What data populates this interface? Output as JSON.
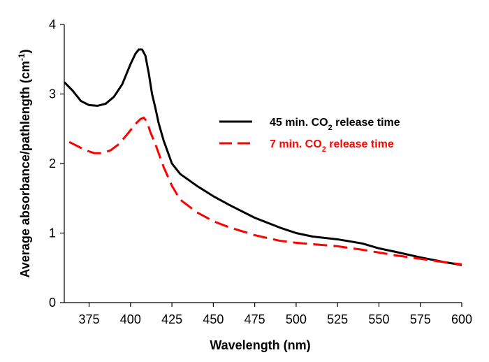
{
  "chart_data": {
    "type": "line",
    "title": "",
    "xlabel": "Wavelength (nm)",
    "ylabel": {
      "text": "Average absorbance/pathlength (cm",
      "sup": "-1",
      "close": ")"
    },
    "xlim": [
      360,
      600
    ],
    "ylim": [
      0,
      4
    ],
    "x_ticks": [
      375,
      400,
      425,
      450,
      475,
      500,
      525,
      550,
      575,
      600
    ],
    "y_ticks": [
      0,
      1,
      2,
      3,
      4
    ],
    "grid": false,
    "legend_position": "center-right",
    "series": [
      {
        "name": "45 min. CO2 release time",
        "label": {
          "pre": "45 min. CO",
          "sub": "2",
          "post": " release time"
        },
        "color": "#000000",
        "style": "solid",
        "x": [
          360,
          365,
          370,
          375,
          380,
          385,
          390,
          395,
          400,
          403,
          405,
          407,
          409,
          411,
          413,
          415,
          417,
          420,
          425,
          430,
          440,
          450,
          460,
          475,
          490,
          500,
          510,
          525,
          540,
          550,
          560,
          575,
          590,
          600
        ],
        "y": [
          3.17,
          3.05,
          2.9,
          2.84,
          2.83,
          2.86,
          2.96,
          3.14,
          3.43,
          3.58,
          3.64,
          3.64,
          3.55,
          3.3,
          3.0,
          2.8,
          2.58,
          2.33,
          2.0,
          1.85,
          1.68,
          1.53,
          1.4,
          1.22,
          1.08,
          1.0,
          0.95,
          0.91,
          0.85,
          0.78,
          0.73,
          0.65,
          0.58,
          0.54
        ]
      },
      {
        "name": "7 min. CO2 release time",
        "label": {
          "pre": "7 min. CO",
          "sub": "2",
          "post": " release time"
        },
        "color": "#ff0000",
        "style": "dashed",
        "x": [
          363,
          368,
          373,
          378,
          383,
          388,
          393,
          398,
          403,
          406,
          408,
          410,
          412,
          415,
          418,
          420,
          425,
          430,
          440,
          450,
          460,
          475,
          490,
          500,
          510,
          525,
          540,
          550,
          560,
          575,
          590,
          600
        ],
        "y": [
          2.31,
          2.25,
          2.19,
          2.15,
          2.15,
          2.19,
          2.28,
          2.42,
          2.57,
          2.64,
          2.66,
          2.6,
          2.45,
          2.28,
          2.08,
          1.95,
          1.68,
          1.48,
          1.3,
          1.17,
          1.08,
          0.97,
          0.89,
          0.86,
          0.84,
          0.81,
          0.76,
          0.72,
          0.68,
          0.63,
          0.58,
          0.55
        ]
      }
    ]
  }
}
